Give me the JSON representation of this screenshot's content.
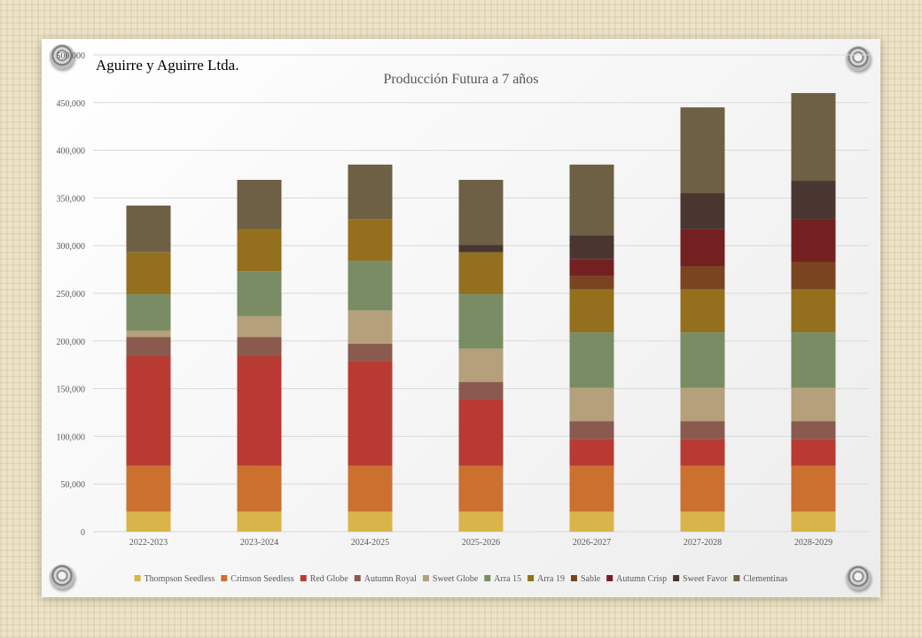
{
  "header": {
    "company": "Aguirre y Aguirre Ltda."
  },
  "chart_data": {
    "type": "bar",
    "stacked": true,
    "title": "Producción Futura a 7 años",
    "xlabel": "",
    "ylabel": "",
    "ylim": [
      0,
      500000
    ],
    "yticks": [
      0,
      50000,
      100000,
      150000,
      200000,
      250000,
      300000,
      350000,
      400000,
      450000,
      500000
    ],
    "ytick_labels": [
      "0",
      "50,000",
      "100,000",
      "150,000",
      "200,000",
      "250,000",
      "300,000",
      "350,000",
      "400,000",
      "450,000",
      "500,000"
    ],
    "grid": true,
    "legend_position": "bottom",
    "categories": [
      "2022-2023",
      "2023-2024",
      "2024-2025",
      "2025-2026",
      "2026-2027",
      "2027-2028",
      "2028-2029"
    ],
    "series": [
      {
        "name": "Thompson Seedless",
        "color": "#d9b44a",
        "values": [
          21000,
          21000,
          21000,
          21000,
          21000,
          21000,
          21000
        ]
      },
      {
        "name": "Crimson Seedless",
        "color": "#cc7030",
        "values": [
          48000,
          48000,
          48000,
          48000,
          48000,
          48000,
          48000
        ]
      },
      {
        "name": "Red Globe",
        "color": "#b83a32",
        "values": [
          115000,
          115000,
          110000,
          70000,
          28000,
          28000,
          28000
        ]
      },
      {
        "name": "Autumn Royal",
        "color": "#8a5a4e",
        "values": [
          20000,
          20000,
          18000,
          18000,
          19000,
          19000,
          19000
        ]
      },
      {
        "name": "Sweet Globe",
        "color": "#b4a07a",
        "values": [
          7000,
          22000,
          35000,
          35000,
          35000,
          35000,
          35000
        ]
      },
      {
        "name": "Arra 15",
        "color": "#7a8c64",
        "values": [
          38000,
          47000,
          52000,
          57000,
          58000,
          58000,
          58000
        ]
      },
      {
        "name": "Arra 19",
        "color": "#94701e",
        "values": [
          44000,
          44000,
          44000,
          44000,
          45000,
          45000,
          45000
        ]
      },
      {
        "name": "Sable",
        "color": "#7a4420",
        "values": [
          0,
          0,
          0,
          0,
          14000,
          24000,
          29000
        ]
      },
      {
        "name": "Autumn Crisp",
        "color": "#742020",
        "values": [
          0,
          0,
          0,
          0,
          18000,
          39000,
          45000
        ]
      },
      {
        "name": "Sweet Favor",
        "color": "#4a3630",
        "values": [
          0,
          0,
          0,
          8000,
          25000,
          38000,
          40000
        ]
      },
      {
        "name": "Clementinas",
        "color": "#6e6044",
        "values": [
          49000,
          52000,
          57000,
          68000,
          74000,
          90000,
          92000
        ]
      }
    ]
  }
}
